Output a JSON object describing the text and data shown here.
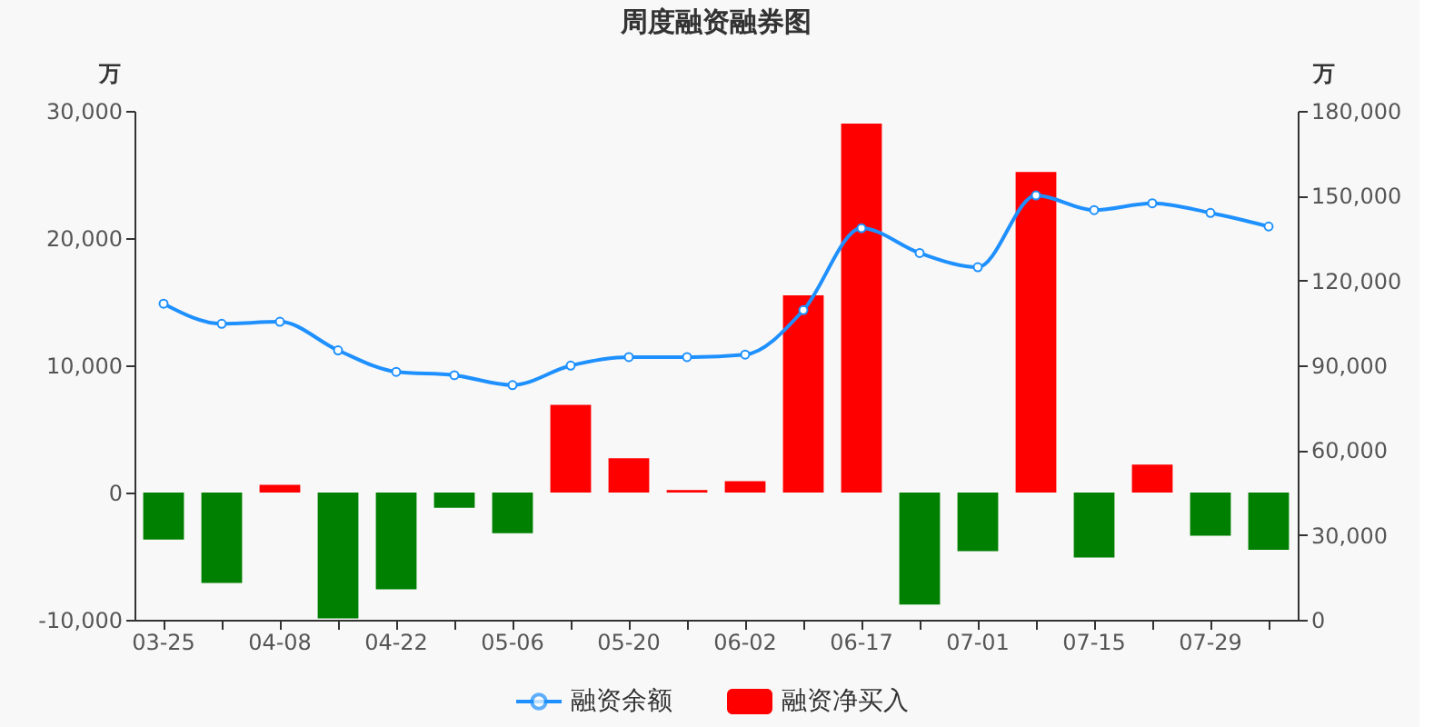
{
  "chart_data": {
    "type": "bar",
    "title": "周度融资融券图",
    "ylabel": "万",
    "y2label": "万",
    "categories": [
      "03-25",
      null,
      "04-08",
      null,
      "04-22",
      null,
      "05-06",
      null,
      "05-20",
      null,
      "06-02",
      null,
      "06-17",
      null,
      "07-01",
      null,
      "07-15",
      null,
      "07-29",
      null
    ],
    "series": [
      {
        "name": "融资余额",
        "type": "line",
        "axis": "y2",
        "color": "#1e90ff",
        "marker": "circle",
        "values": [
          111800,
          104700,
          105400,
          95300,
          87700,
          86500,
          83000,
          89900,
          92900,
          92900,
          93800,
          109500,
          138500,
          129700,
          124700,
          150100,
          144900,
          147300,
          143900,
          139100
        ]
      },
      {
        "name": "融资净买入",
        "color": "#ff0000",
        "colors": [
          "#008000",
          "#008000",
          "#ff0000",
          "#008000",
          "#008000",
          "#008000",
          "#008000",
          "#ff0000",
          "#ff0000",
          "#ff0000",
          "#ff0000",
          "#ff0000",
          "#ff0000",
          "#008000",
          "#008000",
          "#ff0000",
          "#008000",
          "#ff0000",
          "#008000",
          "#008000"
        ],
        "values": [
          -3700,
          -7100,
          600,
          -9900,
          -7600,
          -1200,
          -3200,
          6900,
          2700,
          200,
          900,
          15500,
          29000,
          -8800,
          -4600,
          25200,
          -5100,
          2200,
          -3400,
          -4500
        ]
      }
    ],
    "ylim": [
      -10000,
      30000
    ],
    "yticks": [
      {
        "value": -10000,
        "label": "-10,000"
      },
      0,
      {
        "value": 10000,
        "label": "10,000"
      },
      {
        "value": 20000,
        "label": "20,000"
      },
      {
        "value": 30000,
        "label": "30,000"
      }
    ],
    "y2lim": [
      0,
      180000
    ],
    "y2ticks": [
      0,
      {
        "value": 30000,
        "label": "30,000"
      },
      {
        "value": 60000,
        "label": "60,000"
      },
      {
        "value": 90000,
        "label": "90,000"
      },
      {
        "value": 120000,
        "label": "120,000"
      },
      {
        "value": 150000,
        "label": "150,000"
      },
      {
        "value": 180000,
        "label": "180,000"
      }
    ],
    "grid": false,
    "legend": "bottom"
  }
}
